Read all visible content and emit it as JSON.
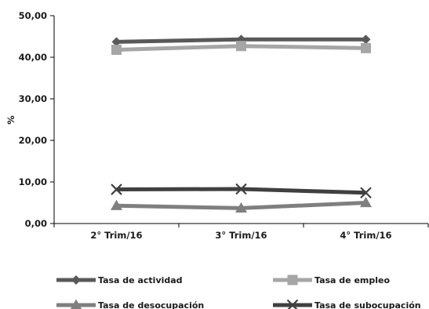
{
  "chart_data": {
    "type": "line",
    "title": "",
    "xlabel": "",
    "ylabel": "%",
    "ylim": [
      0,
      50
    ],
    "y_ticks": [
      "0,00",
      "10,00",
      "20,00",
      "30,00",
      "40,00",
      "50,00"
    ],
    "y_tick_values": [
      0,
      10,
      20,
      30,
      40,
      50
    ],
    "categories": [
      "2° Trim/16",
      "3° Trim/16",
      "4° Trim/16"
    ],
    "grid": false,
    "legend_placement": "bottom",
    "series": [
      {
        "name": "Tasa de actividad",
        "values": [
          43.7,
          44.3,
          44.3
        ],
        "color": "#595959",
        "marker": "diamond"
      },
      {
        "name": "Tasa de empleo",
        "values": [
          41.8,
          42.7,
          42.2
        ],
        "color": "#a6a6a6",
        "marker": "square"
      },
      {
        "name": "Tasa de desocupación",
        "values": [
          4.3,
          3.7,
          5.0
        ],
        "color": "#7f7f7f",
        "marker": "triangle"
      },
      {
        "name": "Tasa de subocupación",
        "values": [
          8.2,
          8.3,
          7.4
        ],
        "color": "#404040",
        "marker": "x"
      }
    ]
  }
}
